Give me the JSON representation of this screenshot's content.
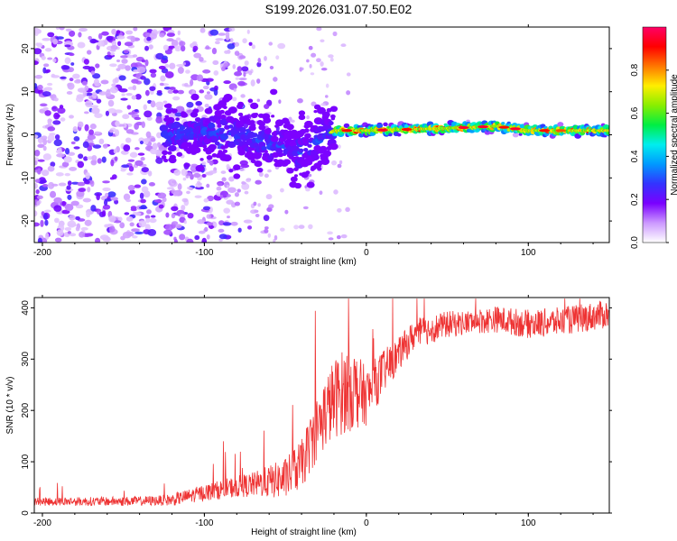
{
  "title": "S199.2026.031.07.50.E02",
  "chart_data": [
    {
      "type": "heatmap",
      "xlabel": "Height of straight line (km)",
      "ylabel": "Frequency (Hz)",
      "xlim": [
        -205,
        150
      ],
      "ylim": [
        -25,
        25
      ],
      "xticks": [
        -200,
        -100,
        0,
        100
      ],
      "yticks": [
        -20,
        -10,
        0,
        10,
        20
      ],
      "colorbar": {
        "label": "Normalized spectral amplitude",
        "range": [
          0,
          1
        ],
        "ticks": [
          "0.0",
          "0.2",
          "0.4",
          "0.6",
          "0.8"
        ],
        "colors": [
          "#ffffff",
          "#cc99ff",
          "#7a00ff",
          "#3333ff",
          "#0099ff",
          "#00eeee",
          "#00ee44",
          "#88ee00",
          "#ffee00",
          "#ff7700",
          "#ff0000",
          "#ff0066"
        ]
      },
      "ridge": {
        "points": [
          [
            -120,
            0
          ],
          [
            -100,
            1
          ],
          [
            -80,
            0
          ],
          [
            -60,
            -2
          ],
          [
            -40,
            -4
          ],
          [
            -20,
            1
          ],
          [
            0,
            1
          ],
          [
            50,
            1.5
          ],
          [
            80,
            2
          ],
          [
            100,
            1
          ],
          [
            150,
            1
          ]
        ]
      }
    },
    {
      "type": "line",
      "xlabel": "Height of straight line (km)",
      "ylabel": "SNR (10 * v/v)",
      "xlim": [
        -205,
        150
      ],
      "ylim": [
        0,
        420
      ],
      "xticks": [
        -200,
        -100,
        0,
        100
      ],
      "yticks": [
        0,
        100,
        200,
        300,
        400
      ],
      "series": [
        {
          "name": "SNR",
          "color": "#ee3333",
          "trend": [
            [
              -205,
              20
            ],
            [
              -150,
              20
            ],
            [
              -120,
              22
            ],
            [
              -100,
              35
            ],
            [
              -80,
              45
            ],
            [
              -50,
              55
            ],
            [
              -40,
              80
            ],
            [
              -30,
              150
            ],
            [
              -20,
              200
            ],
            [
              -10,
              220
            ],
            [
              0,
              210
            ],
            [
              10,
              260
            ],
            [
              20,
              300
            ],
            [
              30,
              340
            ],
            [
              50,
              360
            ],
            [
              80,
              370
            ],
            [
              100,
              360
            ],
            [
              120,
              365
            ],
            [
              150,
              380
            ]
          ],
          "noise": [
            [
              -205,
              10
            ],
            [
              -130,
              12
            ],
            [
              -100,
              20
            ],
            [
              -70,
              30
            ],
            [
              -40,
              60
            ],
            [
              -25,
              90
            ],
            [
              -10,
              110
            ],
            [
              0,
              70
            ],
            [
              20,
              40
            ],
            [
              60,
              30
            ],
            [
              100,
              35
            ],
            [
              150,
              35
            ]
          ]
        }
      ]
    }
  ]
}
